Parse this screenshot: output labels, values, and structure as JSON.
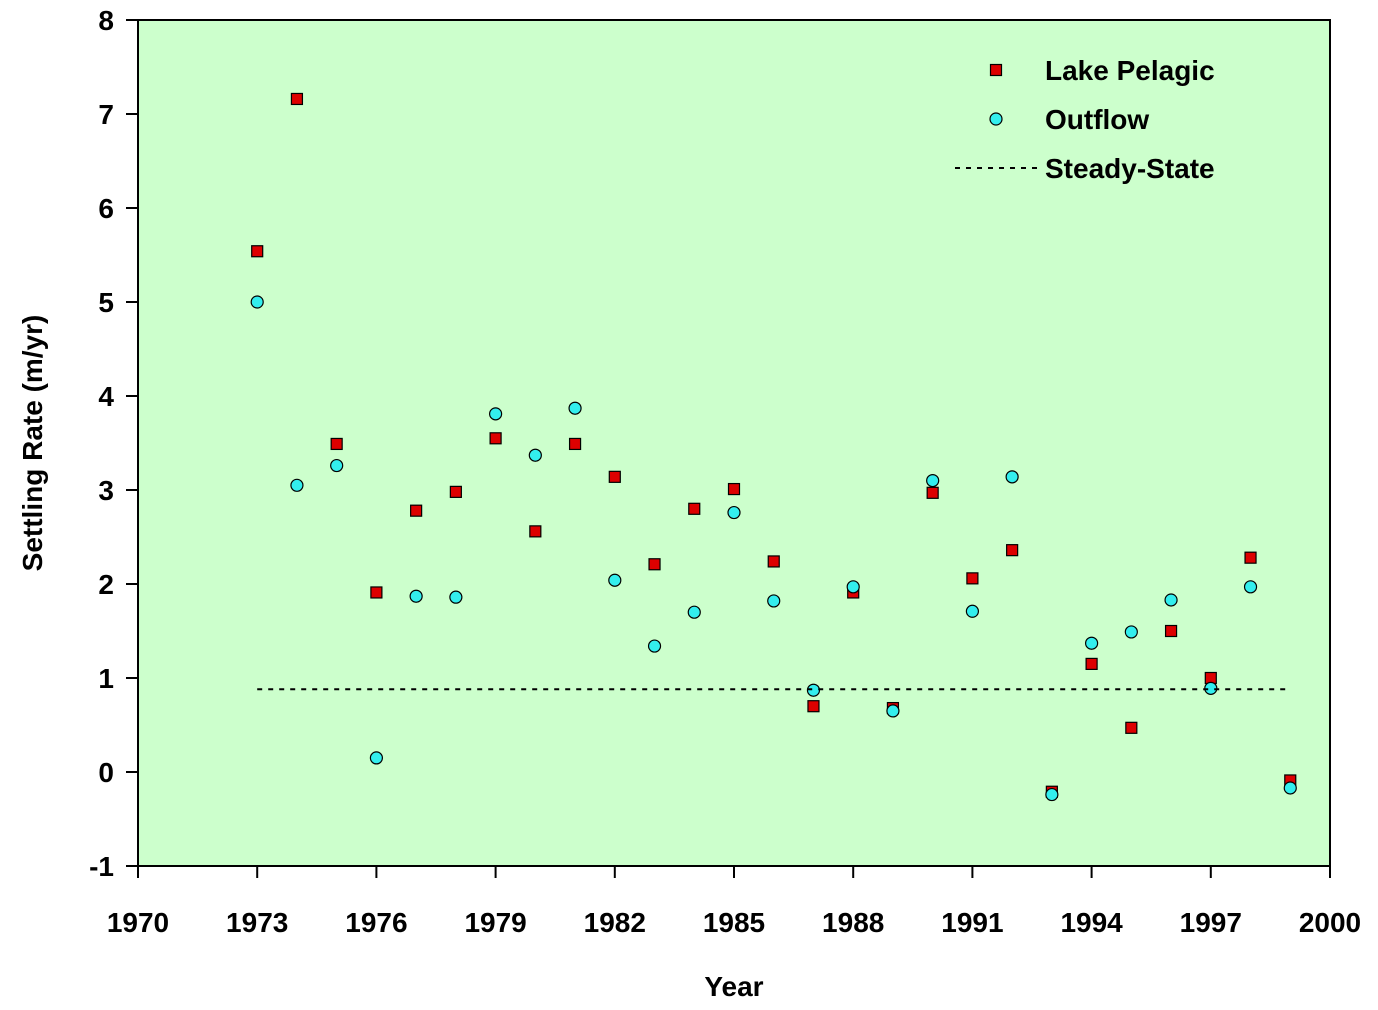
{
  "chart_data": {
    "type": "scatter",
    "x_label": "Year",
    "y_label": "Settling Rate (m/yr)",
    "xlim": [
      1970,
      2000
    ],
    "ylim": [
      -1,
      8
    ],
    "xticks": [
      1970,
      1973,
      1976,
      1979,
      1982,
      1985,
      1988,
      1991,
      1994,
      1997,
      2000
    ],
    "yticks": [
      -1,
      0,
      1,
      2,
      3,
      4,
      5,
      6,
      7,
      8
    ],
    "background": "#ccffcc",
    "legend": "upper right",
    "series": [
      {
        "name": "Lake Pelagic",
        "marker": "square",
        "color": "#dd0000",
        "x": [
          1973,
          1974,
          1975,
          1976,
          1977,
          1978,
          1979,
          1980,
          1981,
          1982,
          1983,
          1984,
          1985,
          1986,
          1987,
          1988,
          1989,
          1990,
          1991,
          1992,
          1993,
          1994,
          1995,
          1996,
          1997,
          1998,
          1999
        ],
        "values": [
          5.54,
          7.16,
          3.49,
          1.91,
          2.78,
          2.98,
          3.55,
          2.56,
          3.49,
          3.14,
          2.21,
          2.8,
          3.01,
          2.24,
          0.7,
          1.91,
          0.68,
          2.97,
          2.06,
          2.36,
          -0.21,
          1.15,
          0.47,
          1.5,
          1.0,
          2.28,
          -0.09
        ]
      },
      {
        "name": "Outflow",
        "marker": "circle",
        "color": "#33eeee",
        "x": [
          1973,
          1974,
          1975,
          1976,
          1977,
          1978,
          1979,
          1980,
          1981,
          1982,
          1983,
          1984,
          1985,
          1986,
          1987,
          1988,
          1989,
          1990,
          1991,
          1992,
          1993,
          1994,
          1995,
          1996,
          1997,
          1998,
          1999
        ],
        "values": [
          5.0,
          3.05,
          3.26,
          0.15,
          1.87,
          1.86,
          3.81,
          3.37,
          3.87,
          2.04,
          1.34,
          1.7,
          2.76,
          1.82,
          0.87,
          1.97,
          0.65,
          3.1,
          1.71,
          3.14,
          -0.24,
          1.37,
          1.49,
          1.83,
          0.89,
          1.97,
          -0.17
        ]
      },
      {
        "name": "Steady-State",
        "marker": "dotted-line",
        "color": "#000000",
        "x": [
          1973,
          1999
        ],
        "values": [
          0.88,
          0.88
        ]
      }
    ]
  }
}
